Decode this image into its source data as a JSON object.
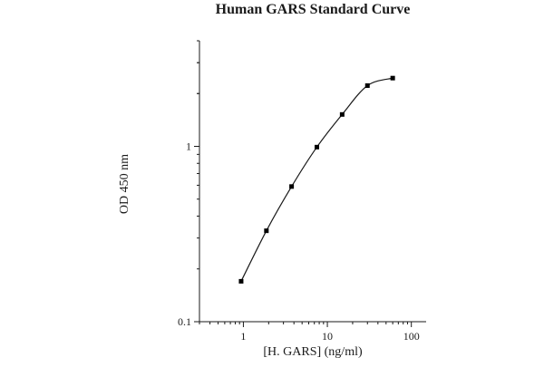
{
  "chart_data": {
    "type": "line",
    "title": "Human GARS Standard Curve",
    "xlabel": "[H. GARS] (ng/ml)",
    "ylabel": "OD 450 nm",
    "x_scale": "log",
    "y_scale": "log",
    "xlim": [
      0.3,
      150
    ],
    "ylim": [
      0.1,
      4
    ],
    "x_ticks": [
      1,
      10,
      100
    ],
    "x_tick_labels": [
      "1",
      "10",
      "100"
    ],
    "y_ticks": [
      0.1,
      1
    ],
    "y_tick_labels": [
      "0.1",
      "1"
    ],
    "grid": false,
    "legend": "none",
    "marker": "square",
    "series": [
      {
        "x": [
          0.94,
          1.88,
          3.75,
          7.5,
          15,
          30,
          60
        ],
        "y": [
          0.17,
          0.33,
          0.59,
          0.99,
          1.52,
          2.22,
          2.45
        ]
      }
    ],
    "colors": {
      "line": "#1a1a1a",
      "marker": "#000000"
    }
  }
}
